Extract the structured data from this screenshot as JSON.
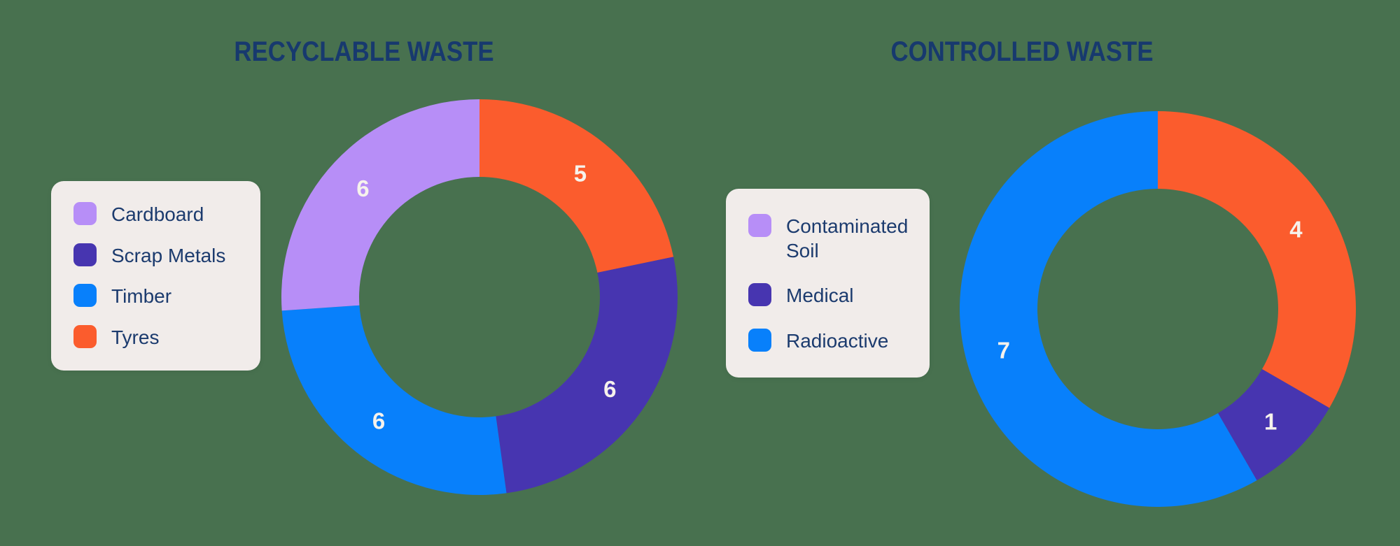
{
  "background_color": "#48714F",
  "text_color_navy": "#17396E",
  "legend_background": "#F1ECEA",
  "chart_data": [
    {
      "type": "donut",
      "title": "RECYCLABLE WASTE",
      "direction": "clockwise",
      "start_angle_deg": 0,
      "total": 23,
      "slices": [
        {
          "label": "Tyres",
          "value": 5,
          "color": "#FB5C2D"
        },
        {
          "label": "Scrap Metals",
          "value": 6,
          "color": "#4735B0"
        },
        {
          "label": "Timber",
          "value": 6,
          "color": "#0880FB"
        },
        {
          "label": "Cardboard",
          "value": 6,
          "color": "#B78EF7"
        }
      ],
      "legend_position": "left",
      "legend": [
        {
          "label": "Cardboard",
          "color": "#B78EF7"
        },
        {
          "label": "Scrap Metals",
          "color": "#4735B0"
        },
        {
          "label": "Timber",
          "color": "#0880FB"
        },
        {
          "label": "Tyres",
          "color": "#FB5C2D"
        }
      ],
      "value_labels_color": "#F6F2EC"
    },
    {
      "type": "donut",
      "title": "CONTROLLED WASTE",
      "direction": "clockwise",
      "start_angle_deg": 0,
      "total": 12,
      "slices": [
        {
          "label": "",
          "value": 4,
          "color": "#FB5C2D"
        },
        {
          "label": "Medical",
          "value": 1,
          "color": "#4735B0"
        },
        {
          "label": "Radioactive",
          "value": 7,
          "color": "#0880FB"
        }
      ],
      "legend_position": "left",
      "legend": [
        {
          "label": "Contaminated Soil",
          "color": "#B78EF7"
        },
        {
          "label": "Medical",
          "color": "#4735B0"
        },
        {
          "label": "Radioactive",
          "color": "#0880FB"
        }
      ],
      "value_labels_color": "#F6F2EC"
    }
  ]
}
